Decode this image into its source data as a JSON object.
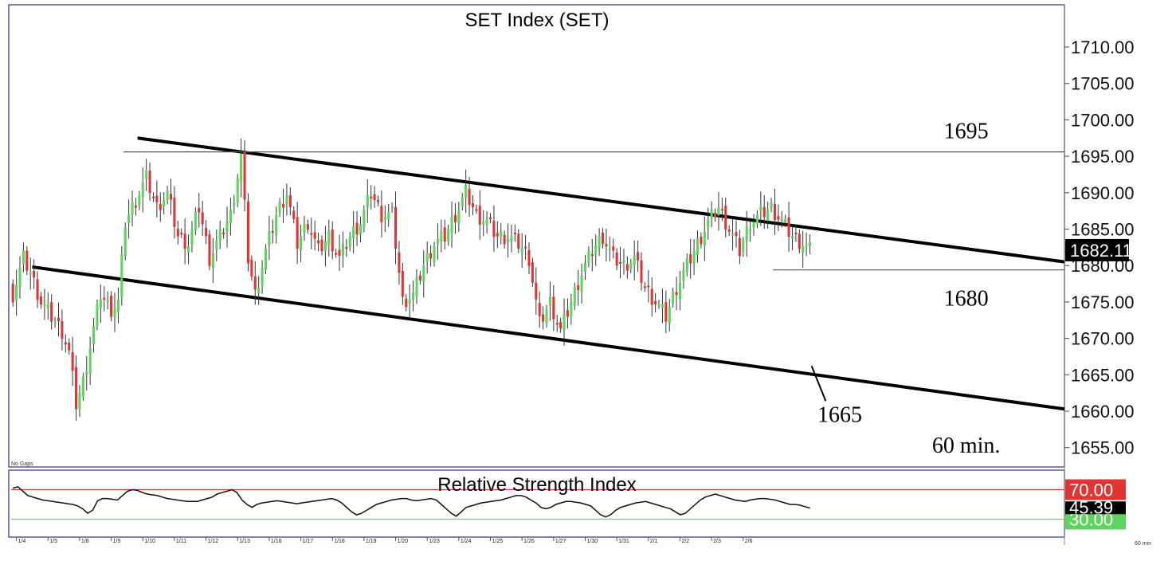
{
  "chart_data": [
    {
      "type": "candlestick",
      "title": "SET  Index  (SET)",
      "timeframe_label": "60 min.",
      "no_gaps_label": "No Gaps",
      "y_ticks": [
        "1710.00",
        "1705.00",
        "1700.00",
        "1695.00",
        "1690.00",
        "1685.00",
        "1680.00",
        "1675.00",
        "1670.00",
        "1665.00",
        "1660.00",
        "1655.00"
      ],
      "y_tick_values": [
        1710,
        1705,
        1700,
        1695,
        1690,
        1685,
        1680,
        1675,
        1670,
        1665,
        1660,
        1655
      ],
      "ylim": [
        1652.5,
        1713.5
      ],
      "x_ticks": [
        "1/4",
        "1/5",
        "1/8",
        "1/9",
        "1/10",
        "1/11",
        "1/12",
        "1/13",
        "1/16",
        "1/17",
        "1/18",
        "1/19",
        "1/20",
        "1/23",
        "1/24",
        "1/25",
        "1/26",
        "1/27",
        "1/30",
        "1/31",
        "2/1",
        "2/2",
        "2/3",
        "2/6"
      ],
      "x_tick_positions": [
        1.5,
        10.5,
        19.5,
        28.5,
        37.5,
        46.5,
        55.5,
        64.5,
        73.5,
        82.5,
        91.5,
        100.5,
        109.5,
        118.5,
        127.5,
        136.5,
        145.5,
        154.5,
        163.5,
        172.5,
        181.5,
        190.5,
        199.5,
        208.5
      ],
      "x_range": [
        0,
        300
      ],
      "current_price": "1682.11",
      "current_value": 1682.11,
      "up_color": "#5fd35f",
      "down_color": "#e03535",
      "candles": [],
      "trendlines": [
        {
          "name": "upper-channel",
          "x1": 36,
          "y1": 1697.5,
          "x2": 300,
          "y2": 1680.5
        },
        {
          "name": "lower-channel",
          "x1": 6,
          "y1": 1679.8,
          "x2": 300,
          "y2": 1660.3
        },
        {
          "name": "level-1695",
          "x1": 32,
          "y1": 1695.6,
          "x2": 300,
          "y2": 1695.6
        },
        {
          "name": "level-1680",
          "x1": 217,
          "y1": 1679.4,
          "x2": 300,
          "y2": 1679.4
        }
      ],
      "annotations": [
        {
          "label": "1695",
          "x": 272,
          "y": 1697.5
        },
        {
          "label": "1680",
          "x": 272,
          "y": 1674.5
        },
        {
          "label": "1665",
          "x": 236,
          "y": 1658.5
        },
        {
          "label": "60 min.",
          "x": 272,
          "y": 1654.3
        }
      ]
    },
    {
      "type": "line",
      "title": "Relative  Strength  Index",
      "levels": [
        {
          "label": "70.00",
          "value": 70,
          "color": "#e03535"
        },
        {
          "label": "30.00",
          "value": 30,
          "color": "#5fd35f"
        }
      ],
      "current_label": "45.39",
      "current_value": 45.39,
      "ylim": [
        10,
        90
      ],
      "x_range": [
        0,
        300
      ],
      "x_axis_unit": "60  min",
      "series": [
        {
          "values": [
            72,
            74,
            68,
            62,
            60,
            58,
            56,
            55,
            54,
            53,
            52,
            51,
            50,
            48,
            44,
            38,
            42,
            55,
            58,
            58,
            57,
            56,
            62,
            68,
            70,
            69,
            66,
            64,
            63,
            62,
            60,
            58,
            57,
            56,
            55,
            54,
            54,
            54,
            56,
            58,
            60,
            64,
            66,
            68,
            70,
            66,
            56,
            50,
            46,
            50,
            52,
            53,
            54,
            55,
            54,
            53,
            52,
            51,
            52,
            53,
            54,
            55,
            56,
            57,
            58,
            56,
            52,
            46,
            40,
            36,
            38,
            42,
            46,
            50,
            52,
            54,
            56,
            57,
            58,
            58,
            56,
            55,
            56,
            57,
            58,
            56,
            50,
            44,
            38,
            34,
            40,
            46,
            48,
            50,
            52,
            53,
            54,
            55,
            56,
            58,
            60,
            62,
            62,
            60,
            56,
            52,
            46,
            44,
            46,
            50,
            52,
            54,
            54,
            53,
            52,
            50,
            48,
            42,
            36,
            33,
            36,
            42,
            46,
            48,
            50,
            52,
            53,
            54,
            52,
            50,
            48,
            46,
            44,
            40,
            36,
            38,
            44,
            50,
            56,
            60,
            62,
            64,
            62,
            60,
            58,
            56,
            55,
            54,
            56,
            57,
            58,
            58,
            57,
            56,
            54,
            52,
            50,
            50,
            49,
            47,
            45
          ]
        }
      ]
    }
  ]
}
